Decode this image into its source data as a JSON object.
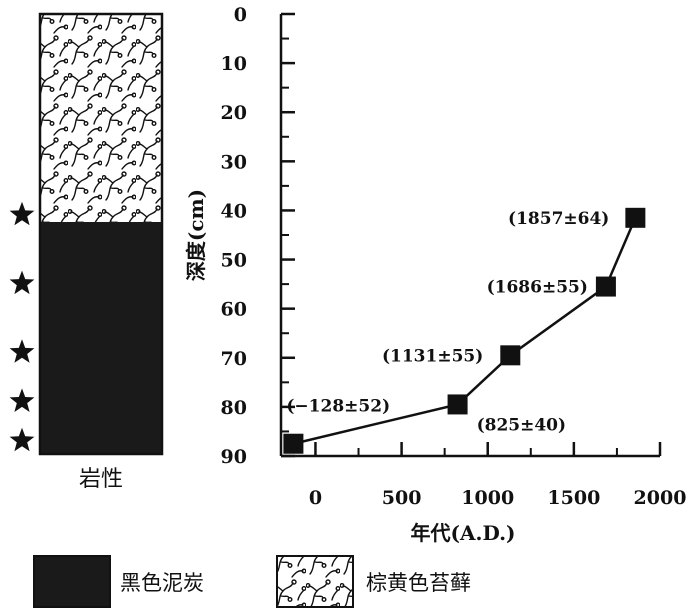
{
  "chart_data": {
    "type": "line",
    "title": "",
    "xlabel": "年代(A.D.)",
    "ylabel": "深度(cm)",
    "xlim": [
      -200,
      2000
    ],
    "ylim": [
      0,
      90
    ],
    "y_inverted": true,
    "x_ticks": [
      "0",
      "500",
      "1000",
      "1500",
      "2000"
    ],
    "y_ticks": [
      "0",
      "10",
      "20",
      "30",
      "40",
      "50",
      "60",
      "70",
      "80",
      "90"
    ],
    "series": [
      {
        "marker": "square",
        "color": "#111111",
        "x": [
          -128,
          825,
          1131,
          1686,
          1857
        ],
        "y": [
          87.5,
          79.5,
          69.5,
          55.5,
          41.5
        ],
        "labels": [
          "(−128±52)",
          "(825±40)",
          "(1131±55)",
          "(1686±55)",
          "(1857±64)"
        ]
      }
    ],
    "lithology": {
      "column_label": "岩性",
      "layers": [
        {
          "name": "棕黄色苔藓",
          "from": 0,
          "to": 42,
          "fill": "moss-pattern"
        },
        {
          "name": "黑色泥炭",
          "from": 42,
          "to": 90,
          "fill": "#1a1a1a"
        }
      ],
      "sample_star_depths": [
        41.5,
        55.5,
        69.5,
        79.5,
        87.5
      ]
    },
    "legend": [
      {
        "label": "黑色泥炭",
        "swatch": "solid-black"
      },
      {
        "label": "棕黄色苔藓",
        "swatch": "moss-pattern"
      }
    ]
  }
}
